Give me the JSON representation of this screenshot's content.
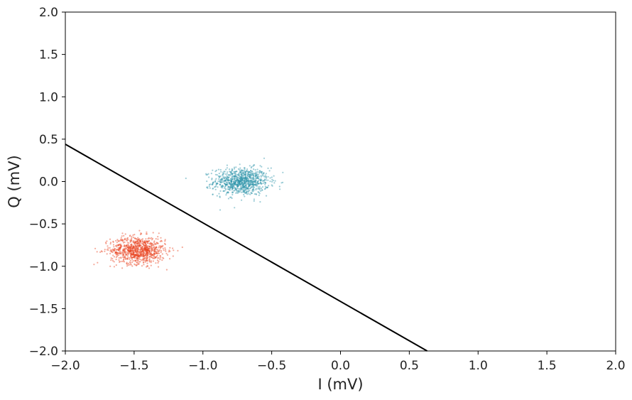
{
  "chart_data": {
    "type": "scatter",
    "title": "",
    "xlabel": "I (mV)",
    "ylabel": "Q (mV)",
    "xlim": [
      -2.0,
      2.0
    ],
    "ylim": [
      -2.0,
      2.0
    ],
    "xticks": [
      "-2.0",
      "-1.5",
      "-1.0",
      "-0.5",
      "0.0",
      "0.5",
      "1.0",
      "1.5",
      "2.0"
    ],
    "yticks": [
      "-2.0",
      "-1.5",
      "-1.0",
      "-0.5",
      "0.0",
      "0.5",
      "1.0",
      "1.5",
      "2.0"
    ],
    "grid": false,
    "legend": "none",
    "series": [
      {
        "color": "#2a93a8",
        "center": [
          -0.72,
          0.0
        ],
        "spread": [
          0.1,
          0.08
        ],
        "n": 900
      },
      {
        "color": "#e8401c",
        "center": [
          -1.47,
          -0.81
        ],
        "spread": [
          0.1,
          0.08
        ],
        "n": 900
      }
    ],
    "decision_line": {
      "points": [
        [
          -2.0,
          0.44
        ],
        [
          0.63,
          -2.0
        ]
      ],
      "color": "#000000"
    }
  }
}
